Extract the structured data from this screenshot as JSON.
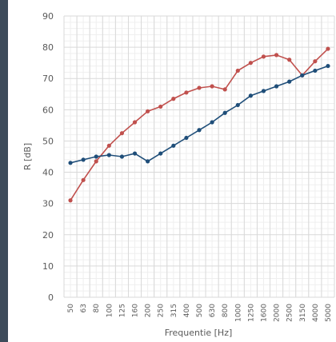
{
  "chart_data": {
    "type": "line",
    "xlabel": "Frequentie [Hz]",
    "ylabel": "R [dB]",
    "ylim": [
      0,
      90
    ],
    "yticks": [
      0,
      10,
      20,
      30,
      40,
      50,
      60,
      70,
      80,
      90
    ],
    "grid": true,
    "legend": "none",
    "categories": [
      "50",
      "63",
      "80",
      "100",
      "125",
      "160",
      "200",
      "250",
      "315",
      "400",
      "500",
      "630",
      "800",
      "1000",
      "1250",
      "1600",
      "2000",
      "2500",
      "3150",
      "4000",
      "5000"
    ],
    "series": [
      {
        "color": "#c0504d",
        "values": [
          31,
          37.5,
          43.5,
          48.5,
          52.5,
          56,
          59.5,
          61,
          63.5,
          65.5,
          67,
          67.5,
          66.5,
          72.5,
          75,
          77,
          77.5,
          76,
          71,
          75.5,
          79.5
        ]
      },
      {
        "color": "#1f4e79",
        "values": [
          43,
          44,
          45,
          45.5,
          45,
          46,
          43.5,
          46,
          48.5,
          51,
          53.5,
          56,
          59,
          61.5,
          64.5,
          66,
          67.5,
          69,
          71,
          72.5,
          74
        ]
      }
    ]
  }
}
